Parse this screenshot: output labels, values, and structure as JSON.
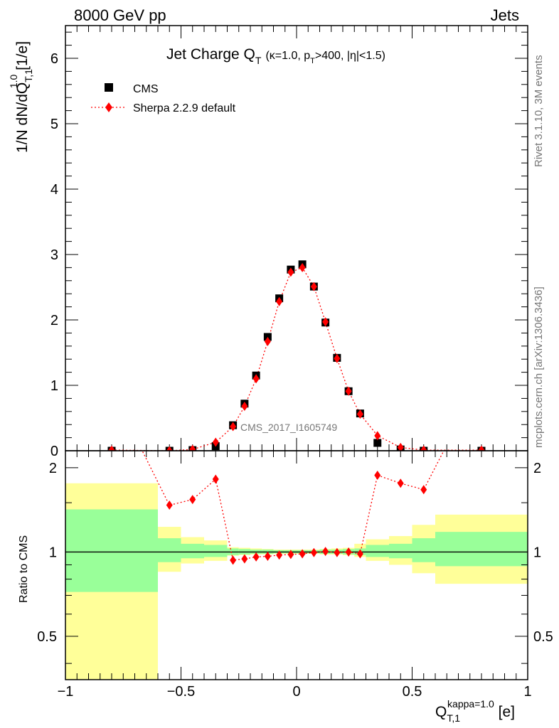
{
  "header": {
    "left": "8000 GeV pp",
    "right": "Jets"
  },
  "side_labels": {
    "rivet": "Rivet 3.1.10,  3M events",
    "mcplots": "mcplots.cern.ch [arXiv:1306.3436]"
  },
  "watermark": "CMS_2017_I1605749",
  "chart_data": [
    {
      "type": "scatter",
      "panel": "main",
      "title": {
        "main": "Jet Charge Q",
        "main_sub": "T",
        "params_a": "(κ=1.0, p",
        "params_sub": "T",
        "params_b": ">400, |η|<1.5)"
      },
      "ylabel": {
        "a": "1/N dN/dQ",
        "sub": "T,1",
        "sup": "1.0",
        "b": " [1/e]"
      },
      "xlim": [
        -1.0,
        1.0
      ],
      "ylim": [
        0,
        6.5
      ],
      "y_ticks": [
        "0",
        "1",
        "2",
        "3",
        "4",
        "5",
        "6"
      ],
      "legend_position": "top-left",
      "series": [
        {
          "name": "CMS",
          "marker": "square",
          "color": "#000000",
          "x": [
            -0.8,
            -0.55,
            -0.45,
            -0.35,
            -0.275,
            -0.225,
            -0.175,
            -0.125,
            -0.075,
            -0.025,
            0.025,
            0.075,
            0.125,
            0.175,
            0.225,
            0.275,
            0.35,
            0.45,
            0.55,
            0.8
          ],
          "y": [
            0.0,
            0.0,
            0.01,
            0.07,
            0.39,
            0.72,
            1.15,
            1.74,
            2.33,
            2.77,
            2.85,
            2.51,
            1.96,
            1.42,
            0.91,
            0.57,
            0.12,
            0.02,
            0.0,
            0.0
          ]
        },
        {
          "name": "Sherpa 2.2.9 default",
          "marker": "diamond",
          "color": "#ff0000",
          "line_style": "dotted",
          "x": [
            -0.8,
            -0.55,
            -0.45,
            -0.35,
            -0.275,
            -0.225,
            -0.175,
            -0.125,
            -0.075,
            -0.025,
            0.025,
            0.075,
            0.125,
            0.175,
            0.225,
            0.275,
            0.35,
            0.45,
            0.55,
            0.8
          ],
          "y": [
            0.01,
            0.0,
            0.02,
            0.13,
            0.37,
            0.68,
            1.1,
            1.67,
            2.28,
            2.73,
            2.8,
            2.51,
            1.97,
            1.41,
            0.91,
            0.56,
            0.23,
            0.05,
            0.01,
            0.01
          ]
        }
      ]
    },
    {
      "type": "line",
      "panel": "ratio",
      "ylabel": "Ratio to CMS",
      "xlabel": {
        "a": "Q",
        "sub": "T,1",
        "sup": "kappa=1.0",
        "b": " [e]"
      },
      "xlim": [
        -1.0,
        1.0
      ],
      "ylim": [
        0.35,
        2.3
      ],
      "y_scale": "log",
      "y_ticks": [
        0.5,
        1,
        2
      ],
      "y_tick_labels": [
        "0.5",
        "1",
        "2"
      ],
      "x_ticks": [
        -1,
        -0.5,
        0,
        0.5,
        1
      ],
      "x_tick_labels": [
        "−1",
        "−0.5",
        "0",
        "0.5",
        "1"
      ],
      "reference_line": 1.0,
      "bins": [
        -1.0,
        -0.6,
        -0.5,
        -0.4,
        -0.3,
        -0.25,
        -0.2,
        -0.15,
        -0.1,
        -0.05,
        0.0,
        0.05,
        0.1,
        0.15,
        0.2,
        0.25,
        0.3,
        0.4,
        0.5,
        0.6,
        1.0
      ],
      "band_stat": {
        "color": "#99ff99",
        "lo": [
          0.72,
          0.92,
          0.95,
          0.96,
          0.975,
          0.98,
          0.985,
          0.985,
          0.99,
          0.99,
          0.99,
          0.99,
          0.985,
          0.985,
          0.98,
          0.975,
          0.96,
          0.95,
          0.92,
          0.89
        ],
        "hi": [
          1.42,
          1.12,
          1.07,
          1.06,
          1.03,
          1.025,
          1.02,
          1.02,
          1.015,
          1.015,
          1.015,
          1.015,
          1.02,
          1.02,
          1.025,
          1.03,
          1.06,
          1.07,
          1.12,
          1.18
        ]
      },
      "band_total": {
        "color": "#ffff99",
        "lo": [
          0.35,
          0.85,
          0.91,
          0.93,
          0.97,
          0.975,
          0.98,
          0.98,
          0.985,
          0.985,
          0.985,
          0.985,
          0.98,
          0.98,
          0.975,
          0.96,
          0.93,
          0.9,
          0.84,
          0.77
        ],
        "hi": [
          1.76,
          1.23,
          1.13,
          1.1,
          1.04,
          1.035,
          1.03,
          1.025,
          1.02,
          1.02,
          1.02,
          1.02,
          1.025,
          1.03,
          1.035,
          1.07,
          1.11,
          1.14,
          1.25,
          1.36
        ]
      },
      "series": [
        {
          "name": "Sherpa 2.2.9 default",
          "color": "#ff0000",
          "marker": "diamond",
          "line_style": "dotted",
          "line_start": [
            -0.7,
            2.6
          ],
          "line_end": [
            0.67,
            2.6
          ],
          "x": [
            -0.55,
            -0.45,
            -0.35,
            -0.275,
            -0.225,
            -0.175,
            -0.125,
            -0.075,
            -0.025,
            0.025,
            0.075,
            0.125,
            0.175,
            0.225,
            0.275,
            0.35,
            0.45,
            0.55
          ],
          "y": [
            1.47,
            1.54,
            1.82,
            0.935,
            0.945,
            0.96,
            0.965,
            0.975,
            0.98,
            0.985,
            0.995,
            1.005,
            0.995,
            1.0,
            0.985,
            1.88,
            1.76,
            1.67
          ]
        }
      ]
    }
  ]
}
